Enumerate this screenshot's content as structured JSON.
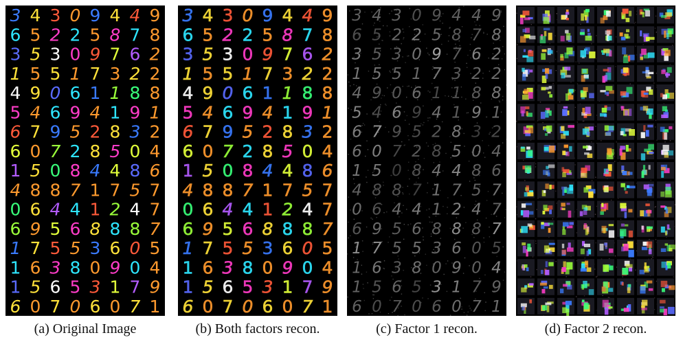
{
  "figure": {
    "panels": [
      {
        "id": "a",
        "caption": "(a) Original Image",
        "style": "clean"
      },
      {
        "id": "b",
        "caption": "(b) Both factors recon.",
        "style": "smooth"
      },
      {
        "id": "c",
        "caption": "(c) Factor 1 recon.",
        "style": "gray-noisy"
      },
      {
        "id": "d",
        "caption": "(d) Factor 2 recon.",
        "style": "color-blob"
      }
    ],
    "grid": {
      "rows": 16,
      "cols": 8
    },
    "digits": [
      "34309449",
      "65225878",
      "35309762",
      "15517322",
      "49061188",
      "54694191",
      "67952832",
      "60728504",
      "15084486",
      "48871757",
      "06441247",
      "69568887",
      "17553605",
      "16380904",
      "15653179",
      "60706071"
    ],
    "palette": [
      "#3a7bff",
      "#ff3cc8",
      "#39ff7a",
      "#ffe23a",
      "#b35cff",
      "#2ee6ff",
      "#ff5a3a",
      "#9aff3a",
      "#ffffff",
      "#ff9a2e",
      "#5a6bff",
      "#e2ff3a"
    ]
  }
}
